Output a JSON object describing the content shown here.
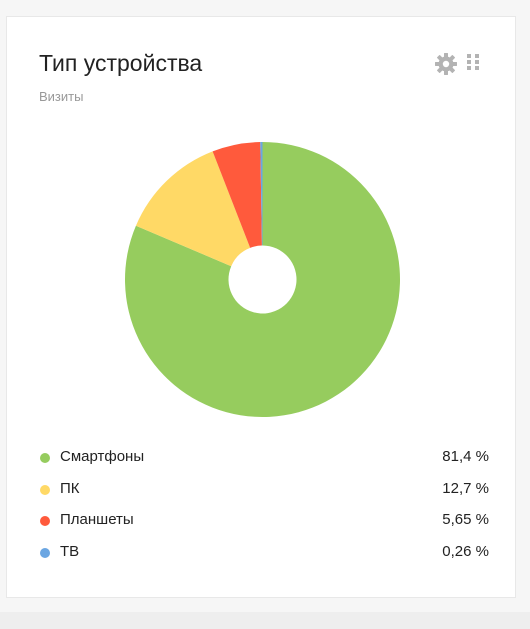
{
  "widget": {
    "title": "Тип устройства",
    "subtitle": "Визиты",
    "settings_icon": "gear-icon",
    "drag_icon": "drag-handle-icon"
  },
  "chart_data": {
    "type": "pie",
    "donut": true,
    "categories": [
      "Смартфоны",
      "ПК",
      "Планшеты",
      "ТВ"
    ],
    "values": [
      81.4,
      12.7,
      5.65,
      0.26
    ],
    "labels": [
      "81,4 %",
      "12,7 %",
      "5,65 %",
      "0,26 %"
    ],
    "colors": [
      "#96cc5e",
      "#ffd966",
      "#ff5a3c",
      "#6ba6e2"
    ],
    "start_angle_deg": 0,
    "direction": "clockwise",
    "legend_position": "bottom"
  }
}
